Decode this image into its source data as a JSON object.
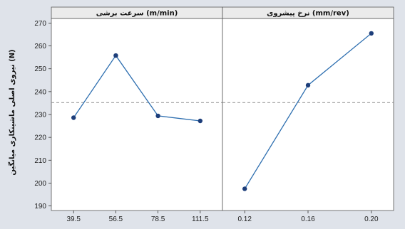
{
  "chart_data": {
    "type": "line",
    "ylabel": "نیروی اصلی ماشینکاری میانگین (N)",
    "ylim": [
      188,
      272
    ],
    "yticks": [
      190,
      200,
      210,
      220,
      230,
      240,
      250,
      260,
      270
    ],
    "reference_line": 235.2,
    "grid": false,
    "colors": {
      "background": "#dfe3ea",
      "plot": "#ffffff",
      "strip": "#ebebeb",
      "line": "#2e6fb0",
      "marker": "#1d3e7a",
      "reference": "#8c8c8c"
    },
    "panels": [
      {
        "title": "سرعت برشی (m/min)",
        "categories": [
          "39.5",
          "56.5",
          "78.5",
          "111.5"
        ],
        "values": [
          228.6,
          255.8,
          229.4,
          227.2
        ]
      },
      {
        "title": "نرخ پیشروی (mm/rev)",
        "categories": [
          "0.12",
          "0.16",
          "0.20"
        ],
        "values": [
          197.5,
          242.8,
          265.5
        ]
      }
    ]
  }
}
